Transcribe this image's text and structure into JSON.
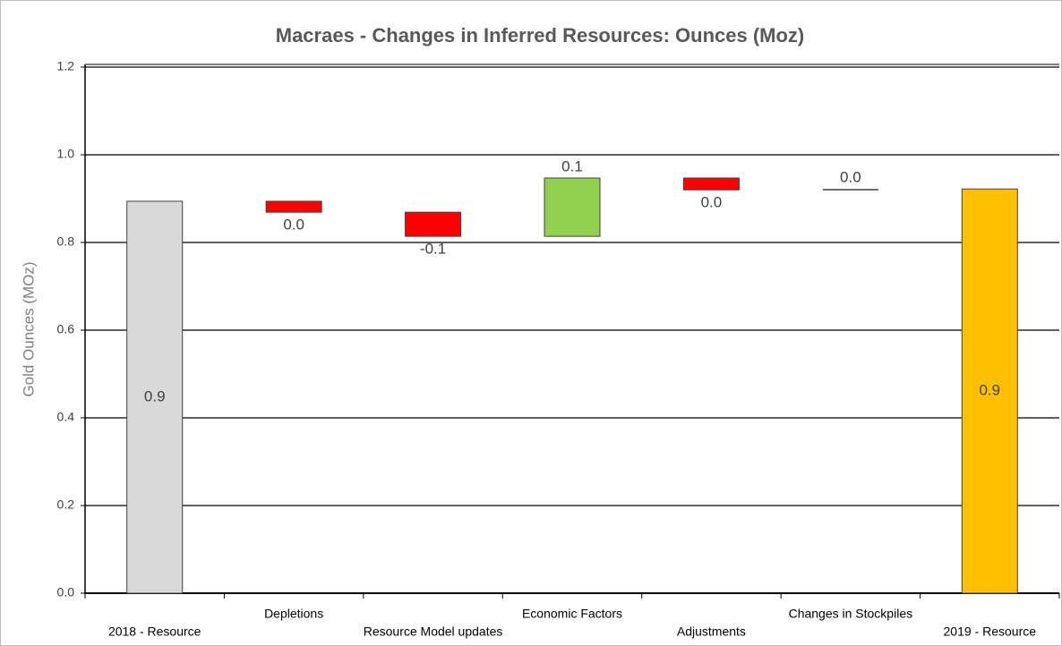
{
  "chart_data": {
    "type": "waterfall",
    "title": "Macraes - Changes in Inferred Resources: Ounces (Moz)",
    "y_label": "Gold Ounces (MOz)",
    "categories": [
      "2018 - Resource",
      "Depletions",
      "Resource Model updates",
      "Economic Factors",
      "Adjustments",
      "Changes in Stockpiles",
      "2019 - Resource"
    ],
    "measure": [
      "absolute",
      "relative",
      "relative",
      "relative",
      "relative",
      "relative",
      "absolute"
    ],
    "values": [
      0.894,
      -0.025,
      -0.055,
      0.133,
      -0.027,
      0.002,
      0.922
    ],
    "value_labels": [
      "0.9",
      "0.0",
      "-0.1",
      "0.1",
      "0.0",
      "0.0",
      "0.9"
    ],
    "colors": [
      "#d9d9d9",
      "#ff0000",
      "#ff0000",
      "#92d050",
      "#ff0000",
      "#404040",
      "#ffc000"
    ],
    "ylim": [
      0,
      1.2
    ],
    "yticks": [
      {
        "value": 0,
        "label": "0.0"
      },
      0.2,
      0.4,
      0.6,
      0.8,
      {
        "value": 1,
        "label": "1.0"
      },
      1.2
    ],
    "grid": true
  }
}
